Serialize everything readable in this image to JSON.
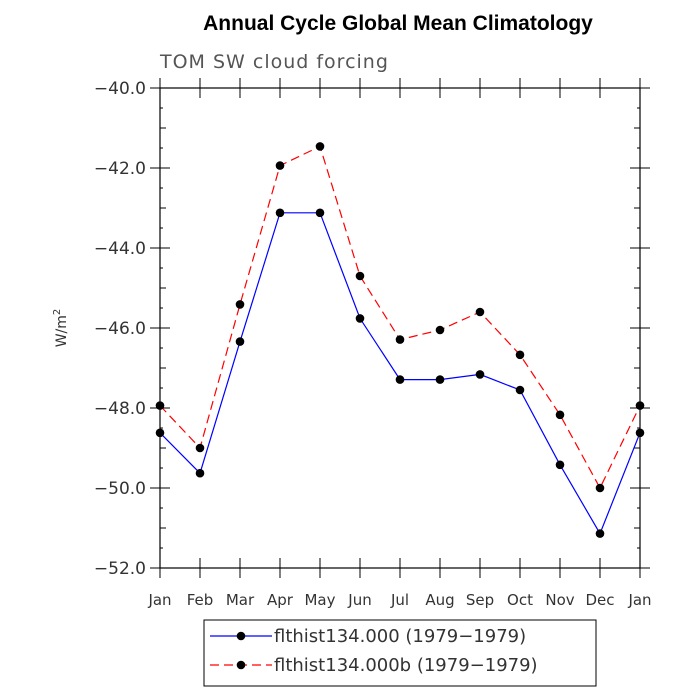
{
  "chart_data": {
    "type": "line",
    "title": "Annual Cycle Global Mean Climatology",
    "subtitle": "TOM SW cloud forcing",
    "ylabel": "W/m",
    "ylabel_sup": "2",
    "xlabel": "",
    "categories": [
      "Jan",
      "Feb",
      "Mar",
      "Apr",
      "May",
      "Jun",
      "Jul",
      "Aug",
      "Sep",
      "Oct",
      "Nov",
      "Dec",
      "Jan"
    ],
    "ylim": [
      -52.0,
      -40.0
    ],
    "yticks": [
      -52.0,
      -50.0,
      -48.0,
      -46.0,
      -44.0,
      -42.0,
      -40.0
    ],
    "ytick_labels": [
      "−52.0",
      "−50.0",
      "−48.0",
      "−46.0",
      "−44.0",
      "−42.0",
      "−40.0"
    ],
    "grid": false,
    "legend_position": "bottom",
    "series": [
      {
        "name": "flthist134.000 (1979−1979)",
        "color": "#0000ff",
        "dash": "solid",
        "values": [
          -48.62,
          -49.63,
          -46.34,
          -43.12,
          -43.12,
          -45.76,
          -47.29,
          -47.29,
          -47.16,
          -47.55,
          -49.42,
          -51.14,
          -48.62
        ]
      },
      {
        "name": "flthist134.000b (1979−1979)",
        "color": "#ff0000",
        "dash": "dashed",
        "values": [
          -47.94,
          -49.0,
          -45.41,
          -41.94,
          -41.46,
          -44.7,
          -46.29,
          -46.05,
          -45.6,
          -46.67,
          -48.17,
          -50.0,
          -47.94
        ]
      }
    ]
  }
}
